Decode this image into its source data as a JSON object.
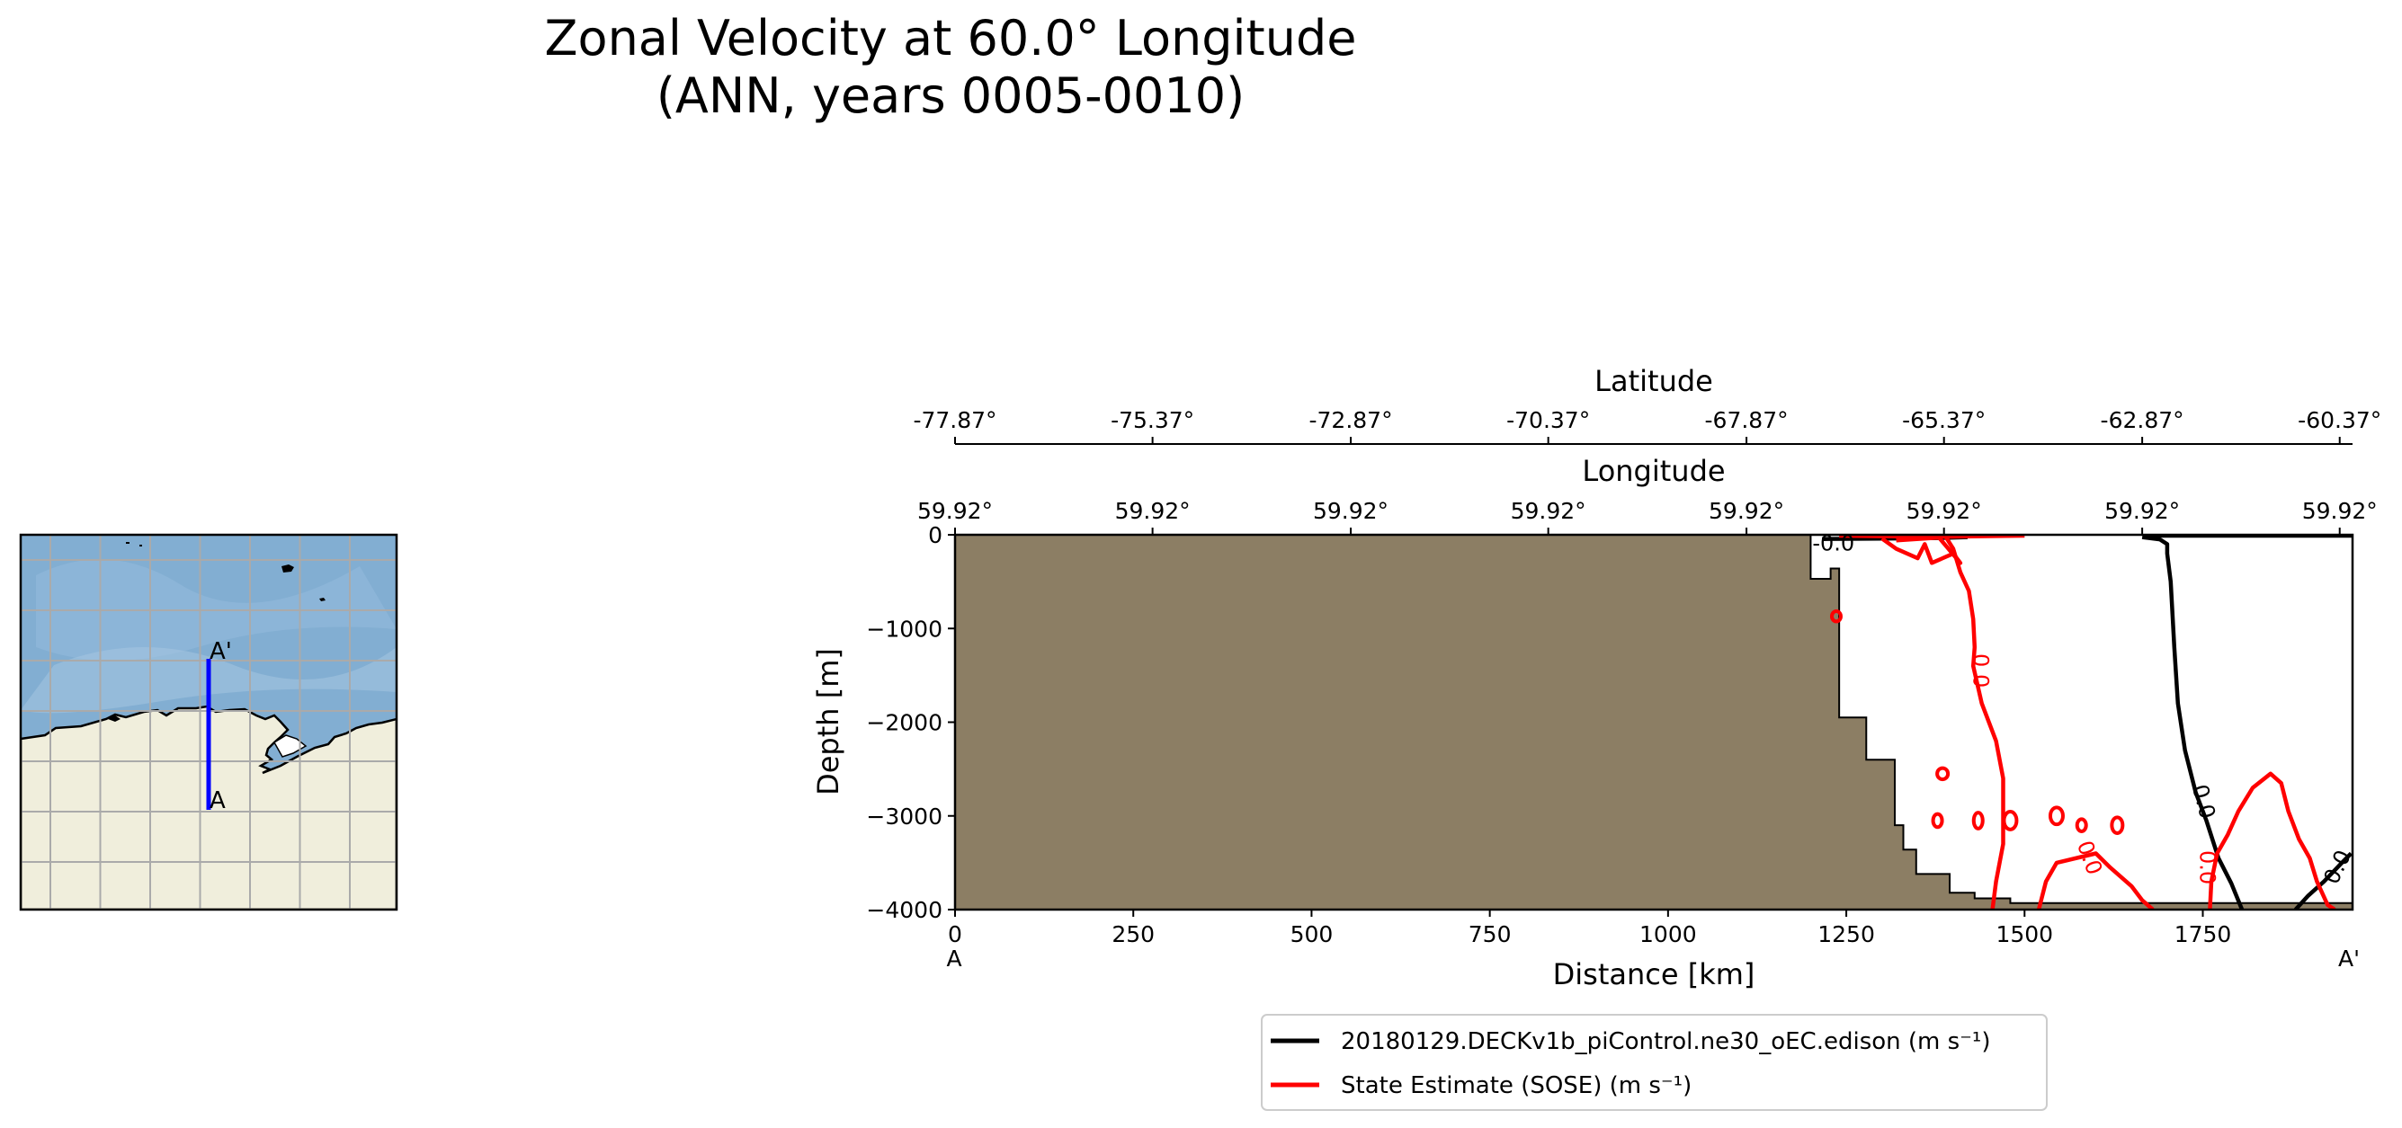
{
  "figure": {
    "title_line1": "Zonal Velocity at 60.0° Longitude",
    "title_line2": "(ANN, years 0005-0010)"
  },
  "inset_map": {
    "label_start": "A",
    "label_end": "A'",
    "transect_color": "#0000ff",
    "ocean_color": "#82aed2",
    "land_color": "#f0eedc"
  },
  "chart_data": {
    "type": "line",
    "subtype": "contour-section",
    "xlabel": "Distance [km]",
    "ylabel": "Depth [m]",
    "xlim": [
      0,
      1960
    ],
    "ylim": [
      -4000,
      0
    ],
    "x_ticks": [
      0,
      250,
      500,
      750,
      1000,
      1250,
      1500,
      1750
    ],
    "y_ticks": [
      0,
      -1000,
      -2000,
      -3000,
      -4000
    ],
    "y_tick_labels": [
      "0",
      "−1000",
      "−2000",
      "−3000",
      "−4000"
    ],
    "x_end_labels": {
      "start": "A",
      "end": "A'"
    },
    "latitude_axis": {
      "label": "Latitude",
      "ticks": [
        0,
        277,
        555,
        832,
        1110,
        1387,
        1665,
        1942
      ],
      "tick_labels": [
        "-77.87°",
        "-75.37°",
        "-72.87°",
        "-70.37°",
        "-67.87°",
        "-65.37°",
        "-62.87°",
        "-60.37°"
      ]
    },
    "longitude_axis": {
      "label": "Longitude",
      "ticks": [
        0,
        277,
        555,
        832,
        1110,
        1387,
        1665,
        1942
      ],
      "tick_labels": [
        "59.92°",
        "59.92°",
        "59.92°",
        "59.92°",
        "59.92°",
        "59.92°",
        "59.92°",
        "59.92°"
      ]
    },
    "bathymetry_color": "#8c7e64",
    "bathymetry": [
      [
        0,
        0
      ],
      [
        1200,
        0
      ],
      [
        1200,
        -470
      ],
      [
        1228,
        -470
      ],
      [
        1228,
        -360
      ],
      [
        1240,
        -360
      ],
      [
        1240,
        -1950
      ],
      [
        1278,
        -1950
      ],
      [
        1278,
        -2400
      ],
      [
        1318,
        -2400
      ],
      [
        1318,
        -3100
      ],
      [
        1330,
        -3100
      ],
      [
        1330,
        -3360
      ],
      [
        1348,
        -3360
      ],
      [
        1348,
        -3620
      ],
      [
        1395,
        -3620
      ],
      [
        1395,
        -3820
      ],
      [
        1430,
        -3820
      ],
      [
        1430,
        -3880
      ],
      [
        1480,
        -3880
      ],
      [
        1480,
        -3930
      ],
      [
        1960,
        -3930
      ]
    ],
    "series": [
      {
        "name": "20180129.DECKv1b_piControl.ne30_oEC.edison (m s⁻¹)",
        "color": "#000000",
        "contour_level": "0.0",
        "lines": [
          [
            [
              1216,
              -45
            ],
            [
              1300,
              -40
            ],
            [
              1380,
              -35
            ],
            [
              1420,
              -25
            ]
          ],
          [
            [
              1665,
              -25
            ],
            [
              1690,
              -50
            ],
            [
              1700,
              -100
            ],
            [
              1700,
              -200
            ],
            [
              1705,
              -500
            ],
            [
              1710,
              -1200
            ],
            [
              1715,
              -1800
            ],
            [
              1725,
              -2300
            ],
            [
              1740,
              -2750
            ],
            [
              1755,
              -3050
            ],
            [
              1772,
              -3450
            ],
            [
              1790,
              -3720
            ],
            [
              1805,
              -4000
            ]
          ],
          [
            [
              1670,
              -10
            ],
            [
              1960,
              -10
            ]
          ],
          [
            [
              1880,
              -4000
            ],
            [
              1898,
              -3850
            ],
            [
              1920,
              -3700
            ],
            [
              1945,
              -3500
            ],
            [
              1958,
              -3400
            ]
          ]
        ],
        "labels": [
          {
            "text": "0.0",
            "x": 1750,
            "y": -2850,
            "rotate": 75
          },
          {
            "text": "0.0",
            "x": 1940,
            "y": -3550,
            "rotate": -65
          }
        ]
      },
      {
        "name": "State Estimate (SOSE) (m s⁻¹)",
        "color": "#ff0000",
        "contour_level": "0.0",
        "lines": [
          [
            [
              1240,
              -10
            ],
            [
              1300,
              -15
            ],
            [
              1390,
              -20
            ],
            [
              1500,
              -10
            ]
          ],
          [
            [
              1300,
              -40
            ],
            [
              1320,
              -150
            ],
            [
              1350,
              -250
            ],
            [
              1360,
              -100
            ],
            [
              1370,
              -300
            ],
            [
              1400,
              -200
            ],
            [
              1410,
              -300
            ],
            [
              1380,
              -30
            ],
            [
              1320,
              -60
            ]
          ],
          [
            [
              1390,
              -30
            ],
            [
              1400,
              -150
            ],
            [
              1410,
              -400
            ],
            [
              1422,
              -600
            ],
            [
              1428,
              -900
            ],
            [
              1430,
              -1200
            ],
            [
              1428,
              -1400
            ],
            [
              1440,
              -1800
            ],
            [
              1460,
              -2200
            ],
            [
              1470,
              -2600
            ],
            [
              1470,
              -3000
            ],
            [
              1470,
              -3300
            ],
            [
              1460,
              -3700
            ],
            [
              1455,
              -4000
            ]
          ],
          [
            [
              1520,
              -4000
            ],
            [
              1530,
              -3700
            ],
            [
              1545,
              -3500
            ],
            [
              1600,
              -3400
            ],
            [
              1620,
              -3550
            ],
            [
              1650,
              -3750
            ],
            [
              1665,
              -3900
            ],
            [
              1680,
              -4000
            ]
          ],
          [
            [
              1760,
              -4000
            ],
            [
              1762,
              -3700
            ],
            [
              1770,
              -3400
            ],
            [
              1785,
              -3200
            ],
            [
              1800,
              -2950
            ],
            [
              1820,
              -2700
            ],
            [
              1845,
              -2550
            ],
            [
              1860,
              -2650
            ],
            [
              1870,
              -2950
            ],
            [
              1885,
              -3250
            ],
            [
              1900,
              -3450
            ],
            [
              1910,
              -3700
            ],
            [
              1925,
              -3950
            ],
            [
              1935,
              -4000
            ]
          ]
        ],
        "ellipses": [
          [
            1236,
            -870,
            5,
            55
          ],
          [
            1385,
            -2550,
            6,
            60
          ],
          [
            1378,
            -3050,
            5,
            70
          ],
          [
            1435,
            -3050,
            5,
            85
          ],
          [
            1480,
            -3050,
            7,
            95
          ],
          [
            1545,
            -3000,
            7,
            90
          ],
          [
            1580,
            -3100,
            5,
            65
          ],
          [
            1630,
            -3100,
            6,
            85
          ]
        ],
        "labels": [
          {
            "text": "0.0",
            "x": 1437,
            "y": -1450,
            "rotate": 90
          },
          {
            "text": "0.0",
            "x": 1590,
            "y": -3450,
            "rotate": 70
          },
          {
            "text": "0.0",
            "x": 1755,
            "y": -3550,
            "rotate": 90
          }
        ]
      }
    ],
    "misc_labels": [
      {
        "text": "-0.0",
        "x": 1232,
        "y": -100
      }
    ]
  }
}
